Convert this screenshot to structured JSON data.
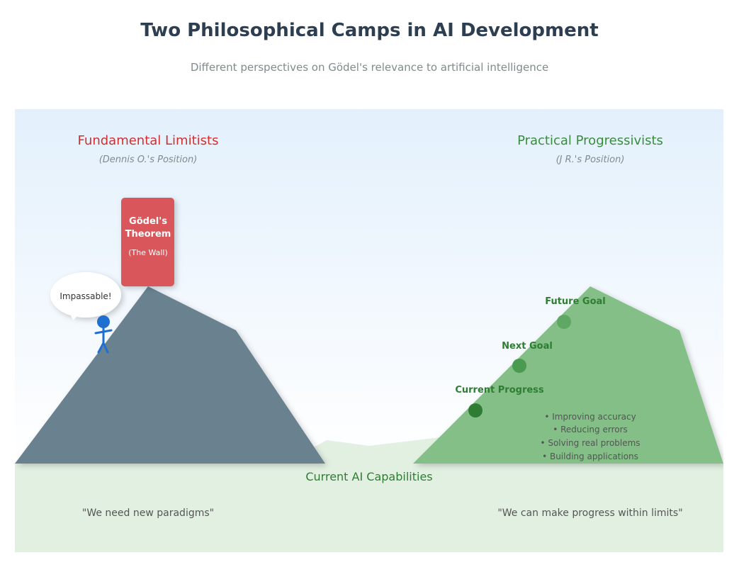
{
  "header": {
    "title": "Two Philosophical Camps in AI Development",
    "subtitle": "Different perspectives on Gödel's relevance to artificial intelligence"
  },
  "left_camp": {
    "name": "Fundamental Limitists",
    "position": "(Dennis O.'s Position)",
    "wall_title_line1": "Gödel's",
    "wall_title_line2": "Theorem",
    "wall_sub": "(The Wall)",
    "speech": "Impassable!",
    "quote": "\"We need new paradigms\"",
    "color": "#d32f2f"
  },
  "right_camp": {
    "name": "Practical Progressivists",
    "position": "(J R.'s Position)",
    "goals": [
      {
        "label": "Future Goal"
      },
      {
        "label": "Next Goal"
      },
      {
        "label": "Current Progress"
      }
    ],
    "bullets": [
      "• Improving accuracy",
      "• Reducing errors",
      "• Solving real problems",
      "• Building applications"
    ],
    "quote": "\"We can make progress within limits\"",
    "color": "#388e3c"
  },
  "ground": {
    "label": "Current AI Capabilities"
  }
}
